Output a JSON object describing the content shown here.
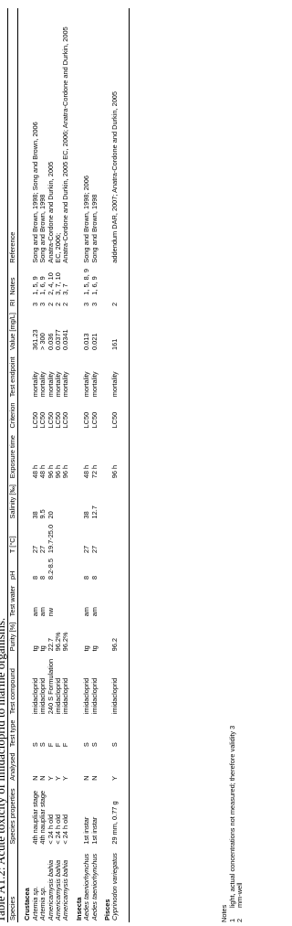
{
  "title": "Table A1.2: Acute toxicity of imidacloprid to marine organisms.",
  "columns": [
    "Species",
    "Species properties",
    "Analysed",
    "Test type",
    "Test compound",
    "Purity [%]",
    "Test water",
    "pH",
    "T [°C]",
    "Salinity [‰]",
    "Exposure time",
    "Criterion",
    "Test endpoint",
    "Value [mg/L]",
    "RI",
    "Notes",
    "Reference"
  ],
  "groups": [
    {
      "name": "Crustacea",
      "rows": [
        [
          "Artemia sp.",
          "4th naupliar stage",
          "N",
          "S",
          "imidacloprid",
          "tg",
          "am",
          "8",
          "27",
          "38",
          "48 h",
          "LC50",
          "mortality",
          "361.23",
          "3",
          "1, 5, 9",
          "Song and Brown, 1998; Song and Brown, 2006"
        ],
        [
          "Artemia sp.",
          "4th naupliar stage",
          "N",
          "S",
          "imidacloprid",
          "tg",
          "am",
          "8",
          "27",
          "9.5",
          "48 h",
          "LC50",
          "mortality",
          "> 300",
          "3",
          "1, 6, 9",
          "Song and Brown, 1998"
        ],
        [
          "Americamysis bahia",
          "< 24 h old",
          "Y",
          "F",
          "240 S Formulation",
          "22.7",
          "nw",
          "8.2-8.5",
          "19.7-25.0",
          "20",
          "96 h",
          "LC50",
          "mortality",
          "0.036",
          "2",
          "2, 4, 10",
          "Anatra-Cordone and Durkin, 2005"
        ],
        [
          "Americamysis bahia",
          "< 24 h old",
          "Y",
          "F",
          "imidacloprid",
          "96.2%",
          null,
          null,
          null,
          null,
          "96 h",
          "LC50",
          "mortality",
          "0.0377",
          "2",
          "3, 7, 10",
          "EC, 2006;"
        ],
        [
          "Americamysis bahia",
          "< 24 h old",
          "Y",
          "F",
          "imidacloprid",
          "96.2%",
          null,
          null,
          null,
          null,
          "96 h",
          "LC50",
          "mortality",
          "0.0341",
          "2",
          "3, 7",
          "Anatra-Cordone and Durkin, 2005 EC, 2006; Anatra-Cordone and Durkin, 2005"
        ]
      ]
    },
    {
      "name": "Insecta",
      "rows": [
        [
          "Aedes taeniorhynchus",
          "1st instar",
          "N",
          "S",
          "imidacloprid",
          "tg",
          "am",
          "8",
          "27",
          "38",
          "48 h",
          "LC50",
          "mortality",
          "0.013",
          "3",
          "1, 5, 8, 9",
          "Song and Brown, 1998; 2006"
        ],
        [
          "Aedes taeniorhynchus",
          "1st instar",
          "N",
          "S",
          "imidacloprid",
          "tg",
          "am",
          "8",
          "27",
          "12.7",
          "72 h",
          "LC50",
          "mortality",
          "0.021",
          "3",
          "1, 6, 9",
          "Song and Brown, 1998"
        ]
      ]
    },
    {
      "name": "Pisces",
      "rows": [
        [
          "Cyprinodon variegatus",
          "29 mm, 0.77 g",
          "Y",
          "S",
          "imidacloprid",
          "96.2",
          null,
          null,
          null,
          null,
          "96 h",
          "LC50",
          "mortality",
          "161",
          "2",
          null,
          "addendum DAR, 2007; Anatra-Cordone and Durkin, 2005"
        ]
      ]
    }
  ],
  "notes_title": "Notes",
  "notes": [
    [
      "1",
      "light, actual concentrations not measured; therefore validity 3"
    ],
    [
      "2",
      "mm-well"
    ]
  ]
}
